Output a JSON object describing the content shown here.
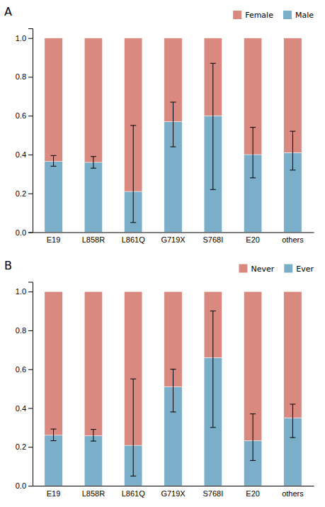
{
  "chart_data": [
    {
      "type": "bar",
      "title": "A",
      "stacked": true,
      "grid": false,
      "legend": "upper right",
      "categories": [
        "E19",
        "L858R",
        "L861Q",
        "G719X",
        "S768I",
        "E20",
        "others"
      ],
      "series": [
        {
          "name": "Male",
          "color": "#7BAEC8",
          "values": [
            0.365,
            0.36,
            0.21,
            0.57,
            0.6,
            0.4,
            0.41
          ],
          "ci_lower": [
            0.34,
            0.33,
            0.05,
            0.44,
            0.22,
            0.28,
            0.32
          ],
          "ci_upper": [
            0.395,
            0.39,
            0.55,
            0.67,
            0.87,
            0.54,
            0.52
          ]
        },
        {
          "name": "Female",
          "color": "#D9897F",
          "values": [
            0.635,
            0.64,
            0.79,
            0.43,
            0.4,
            0.6,
            0.59
          ]
        }
      ],
      "ylim": [
        0.0,
        1.05
      ],
      "yticks": [
        {
          "value": 0,
          "label": "0.0"
        },
        0.2,
        0.4,
        0.6,
        0.8,
        {
          "value": 1,
          "label": "1.0"
        }
      ]
    },
    {
      "type": "bar",
      "title": "B",
      "stacked": true,
      "grid": false,
      "legend": "upper right",
      "categories": [
        "E19",
        "L858R",
        "L861Q",
        "G719X",
        "S768I",
        "E20",
        "others"
      ],
      "series": [
        {
          "name": "Ever",
          "color": "#7BAEC8",
          "values": [
            0.26,
            0.258,
            0.208,
            0.51,
            0.66,
            0.232,
            0.35
          ],
          "ci_lower": [
            0.232,
            0.23,
            0.05,
            0.38,
            0.3,
            0.13,
            0.248
          ],
          "ci_upper": [
            0.292,
            0.29,
            0.55,
            0.6,
            0.9,
            0.37,
            0.42
          ]
        },
        {
          "name": "Never",
          "color": "#D9897F",
          "values": [
            0.74,
            0.742,
            0.792,
            0.49,
            0.34,
            0.768,
            0.65
          ]
        }
      ],
      "ylim": [
        0.0,
        1.05
      ],
      "yticks": [
        {
          "value": 0,
          "label": "0.0"
        },
        0.2,
        0.4,
        0.6,
        0.8,
        {
          "value": 1,
          "label": "1.0"
        }
      ]
    }
  ]
}
